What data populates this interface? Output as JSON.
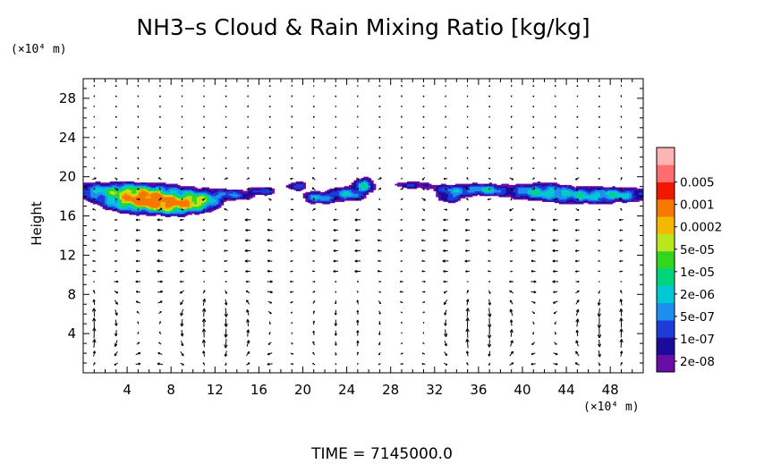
{
  "chart_data": {
    "type": "contour-vector",
    "title": "NH3–s Cloud & Rain Mixing Ratio [kg/kg]",
    "ylabel": "Height",
    "yunit": "(×10⁴ m)",
    "xunit": "(×10⁴ m)",
    "xlim": [
      0,
      51
    ],
    "ylim": [
      0,
      30
    ],
    "xticks": [
      4,
      8,
      12,
      16,
      20,
      24,
      28,
      32,
      36,
      40,
      44,
      48
    ],
    "yticks": [
      4,
      8,
      12,
      16,
      20,
      24,
      28
    ],
    "colorbar": {
      "labels": [
        "0.005",
        "0.001",
        "0.0002",
        "5e-05",
        "1e-05",
        "2e-06",
        "5e-07",
        "1e-07",
        "2e-08"
      ],
      "colors": [
        "#6a0da8",
        "#1c0a9a",
        "#1d3bd6",
        "#1e8ef0",
        "#00c8d6",
        "#00d37c",
        "#33d61e",
        "#b9e61e",
        "#f5b800",
        "#f57800",
        "#f01800",
        "#ff6e6e",
        "#ffb4b4"
      ]
    },
    "cloud_regions": [
      {
        "name": "main-cloud-layer",
        "x_range": [
          0,
          51
        ],
        "y_range": [
          17.0,
          19.8
        ],
        "max_value": "2e-06"
      },
      {
        "name": "core-west",
        "x_range": [
          2.5,
          11.5
        ],
        "y_range": [
          16.6,
          18.6
        ],
        "max_value": "0.005"
      },
      {
        "name": "core-central",
        "x_range": [
          20,
          27
        ],
        "y_range": [
          17.2,
          19.8
        ],
        "max_value": "2e-06"
      },
      {
        "name": "core-east",
        "x_range": [
          39,
          51
        ],
        "y_range": [
          17.2,
          19.4
        ],
        "max_value": "2e-06"
      }
    ],
    "time": "TIME  =  7145000.0"
  }
}
